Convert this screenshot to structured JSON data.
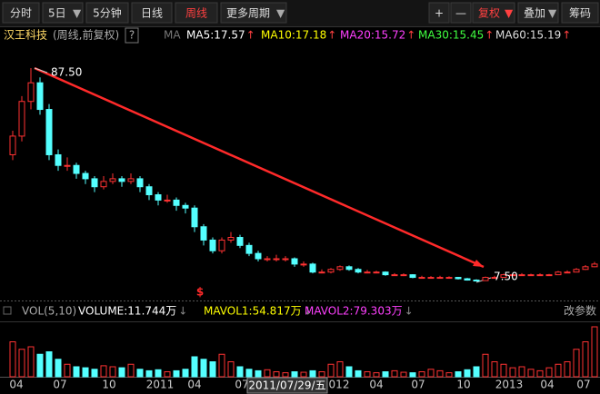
{
  "toolbar": {
    "left": [
      "分时",
      "5日",
      "5分钟",
      "日线",
      "周线",
      "更多周期"
    ],
    "right": [
      "+",
      "—",
      "复权",
      "叠加",
      "筹码"
    ]
  },
  "header": {
    "name": "汉王科技",
    "mode": "(周线,前复权)",
    "help": "?",
    "ma_icon": "MA",
    "ma": [
      "MA5:17.57",
      "MA10:17.18",
      "MA20:15.72",
      "MA30:15.45",
      "MA60:15.19"
    ]
  },
  "price_chart": {
    "ylim": [
      0,
      95
    ],
    "high_label": "87.50",
    "low_label": "7.50",
    "signal": "$",
    "candles": [
      [
        55,
        64,
        53,
        62
      ],
      [
        62,
        77,
        60,
        75
      ],
      [
        75,
        87.5,
        72,
        82
      ],
      [
        82,
        84,
        70,
        72
      ],
      [
        72,
        74,
        53,
        55
      ],
      [
        55,
        57,
        49,
        51
      ],
      [
        51,
        54,
        49,
        51
      ],
      [
        51,
        52,
        46,
        48
      ],
      [
        48,
        49,
        44,
        46
      ],
      [
        46,
        47,
        41,
        43
      ],
      [
        43,
        47,
        42,
        45
      ],
      [
        45,
        48,
        44,
        46
      ],
      [
        46,
        47,
        43,
        45
      ],
      [
        45,
        48,
        44,
        46
      ],
      [
        46,
        47,
        41,
        43
      ],
      [
        43,
        44,
        38,
        40
      ],
      [
        40,
        41,
        36,
        38
      ],
      [
        38,
        40,
        37,
        38
      ],
      [
        38,
        39,
        34,
        36
      ],
      [
        36,
        37,
        33,
        35
      ],
      [
        35,
        36,
        26,
        28
      ],
      [
        28,
        29,
        21,
        23
      ],
      [
        23,
        24,
        18,
        19
      ],
      [
        19,
        24,
        18,
        23
      ],
      [
        23,
        26,
        22,
        24
      ],
      [
        24,
        25,
        20,
        21
      ],
      [
        21,
        22,
        17,
        18
      ],
      [
        18,
        19,
        15,
        16
      ],
      [
        16,
        17,
        15,
        16
      ],
      [
        16,
        17.5,
        15,
        16
      ],
      [
        16,
        17,
        15,
        16
      ],
      [
        16,
        16.5,
        13,
        14
      ],
      [
        14,
        15,
        13,
        14
      ],
      [
        14,
        14.5,
        10.5,
        11
      ],
      [
        11,
        12,
        10.5,
        11
      ],
      [
        11,
        12.5,
        10.5,
        12
      ],
      [
        12,
        13.5,
        11.5,
        13
      ],
      [
        13,
        13.5,
        11.5,
        12
      ],
      [
        12,
        12.5,
        10.5,
        11
      ],
      [
        11,
        11.8,
        10.5,
        11
      ],
      [
        11,
        11.5,
        10.5,
        11
      ],
      [
        11,
        11.3,
        9.6,
        10
      ],
      [
        10,
        10.6,
        9.6,
        10
      ],
      [
        10,
        10.5,
        9.5,
        10
      ],
      [
        10,
        10.2,
        8.7,
        9
      ],
      [
        9,
        9.6,
        8.7,
        9
      ],
      [
        9,
        9.5,
        8.6,
        9
      ],
      [
        9,
        9.6,
        8.7,
        9
      ],
      [
        9,
        9.4,
        8.6,
        9
      ],
      [
        9,
        9.2,
        8.2,
        8.5
      ],
      [
        8.5,
        8.8,
        7.8,
        8
      ],
      [
        8,
        8.3,
        7.5,
        7.8
      ],
      [
        7.8,
        9.3,
        7.7,
        9
      ],
      [
        9,
        9.6,
        8.7,
        9
      ],
      [
        9,
        10.4,
        8.9,
        10
      ],
      [
        10,
        10.5,
        9.7,
        10
      ],
      [
        10,
        10.6,
        9.6,
        10
      ],
      [
        10,
        10.4,
        9.6,
        10
      ],
      [
        10,
        10.5,
        9.7,
        10
      ],
      [
        10,
        10.3,
        9.6,
        10
      ],
      [
        10,
        11.4,
        9.9,
        11
      ],
      [
        11,
        11.6,
        10.7,
        11
      ],
      [
        11,
        12.5,
        10.9,
        12
      ],
      [
        12,
        13.6,
        11.8,
        13
      ],
      [
        13,
        14.8,
        12.8,
        14
      ]
    ]
  },
  "volume": {
    "title": "VOL(5,10)",
    "items": [
      "VOLUME:11.744万",
      "MAVOL1:54.817万",
      "MAVOL2:79.303万"
    ],
    "settings": "改参数",
    "ylim": [
      0,
      100
    ],
    "values": [
      70,
      55,
      60,
      45,
      50,
      35,
      25,
      20,
      18,
      15,
      22,
      20,
      18,
      25,
      15,
      12,
      14,
      10,
      12,
      15,
      40,
      35,
      30,
      45,
      30,
      20,
      15,
      12,
      14,
      10,
      8,
      10,
      9,
      12,
      10,
      25,
      30,
      20,
      12,
      10,
      8,
      10,
      12,
      9,
      8,
      10,
      15,
      12,
      8,
      10,
      14,
      20,
      45,
      30,
      25,
      18,
      20,
      15,
      12,
      18,
      25,
      30,
      55,
      70,
      100
    ]
  },
  "x_axis": {
    "labels": [
      "04",
      "07",
      "10",
      "2011",
      "04",
      "07",
      "012",
      "04",
      "07",
      "10",
      "2013",
      "04",
      "07"
    ]
  },
  "crosshair_date": "2011/07/29/五"
}
